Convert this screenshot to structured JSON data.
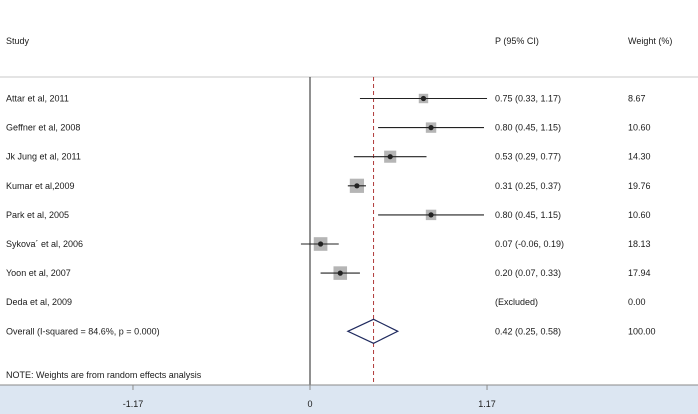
{
  "headers": {
    "study": "Study",
    "estimate": "P (95% CI)",
    "weight": "Weight (%)"
  },
  "note": "NOTE: Weights are from random effects analysis",
  "colors": {
    "reference_line": "#b03a3a",
    "diamond": "#1f2a5e",
    "marker": "#222222",
    "weight_box": "#b5b5b5",
    "axis_band": "#dce6f2"
  },
  "chart_data": {
    "type": "forest",
    "null_line": 0,
    "overall_line": 0.42,
    "xlim": [
      -1.17,
      1.17
    ],
    "xticks": [
      -1.17,
      0,
      1.17
    ],
    "xtick_labels": [
      "-1.17",
      "0",
      "1.17"
    ],
    "studies": [
      {
        "label": "Attar et al, 2011",
        "est": 0.75,
        "lo": 0.33,
        "hi": 1.17,
        "est_text": "0.75 (0.33, 1.17)",
        "weight": 8.67,
        "weight_text": "8.67"
      },
      {
        "label": "Geffner et al, 2008",
        "est": 0.8,
        "lo": 0.45,
        "hi": 1.15,
        "est_text": "0.80 (0.45, 1.15)",
        "weight": 10.6,
        "weight_text": "10.60"
      },
      {
        "label": "Jk Jung et al, 2011",
        "est": 0.53,
        "lo": 0.29,
        "hi": 0.77,
        "est_text": "0.53 (0.29, 0.77)",
        "weight": 14.3,
        "weight_text": "14.30"
      },
      {
        "label": "Kumar et al,2009",
        "est": 0.31,
        "lo": 0.25,
        "hi": 0.37,
        "est_text": "0.31 (0.25, 0.37)",
        "weight": 19.76,
        "weight_text": "19.76"
      },
      {
        "label": "Park et al, 2005",
        "est": 0.8,
        "lo": 0.45,
        "hi": 1.15,
        "est_text": "0.80 (0.45, 1.15)",
        "weight": 10.6,
        "weight_text": "10.60"
      },
      {
        "label": "Sykova´ et al, 2006",
        "est": 0.07,
        "lo": -0.06,
        "hi": 0.19,
        "est_text": "0.07 (-0.06, 0.19)",
        "weight": 18.13,
        "weight_text": "18.13"
      },
      {
        "label": " Yoon et al, 2007",
        "est": 0.2,
        "lo": 0.07,
        "hi": 0.33,
        "est_text": "0.20 (0.07, 0.33)",
        "weight": 17.94,
        "weight_text": "17.94"
      },
      {
        "label": "Deda et al, 2009",
        "est": null,
        "lo": null,
        "hi": null,
        "est_text": "(Excluded)",
        "weight": 0.0,
        "weight_text": "0.00"
      }
    ],
    "overall": {
      "label": "Overall  (I-squared = 84.6%, p = 0.000)",
      "est": 0.42,
      "lo": 0.25,
      "hi": 0.58,
      "est_text": "0.42 (0.25, 0.58)",
      "weight_text": "100.00"
    }
  }
}
